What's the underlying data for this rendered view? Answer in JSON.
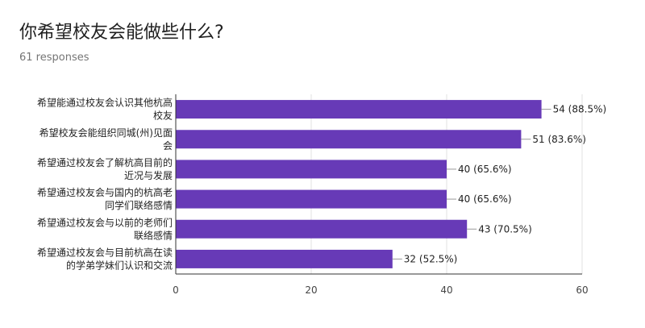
{
  "question": {
    "title": "你希望校友会能做些什么?",
    "responses": "61 responses"
  },
  "colors": {
    "bar": "#673ab7",
    "grid": "#e0e0e0",
    "axis": "#333333",
    "label_line": "#999999"
  },
  "chart_data": {
    "type": "bar",
    "orientation": "horizontal",
    "categories": [
      [
        "希望能通过校友会认识其他杭高",
        "校友"
      ],
      [
        "希望校友会能组织同城(州)见面",
        "会"
      ],
      [
        "希望通过校友会了解杭高目前的",
        "近况与发展"
      ],
      [
        "希望通过校友会与国内的杭高老",
        "同学们联络感情"
      ],
      [
        "希望通过校友会与以前的老师们",
        "联络感情"
      ],
      [
        "希望通过校友会与目前杭高在读",
        "的学弟学妹们认识和交流"
      ]
    ],
    "values": [
      54,
      51,
      40,
      40,
      43,
      32
    ],
    "data_labels": [
      "54 (88.5%)",
      "51 (83.6%)",
      "40 (65.6%)",
      "40 (65.6%)",
      "43 (70.5%)",
      "32 (52.5%)"
    ],
    "xlim": [
      0,
      60
    ],
    "xticks": [
      0,
      20,
      40,
      60
    ],
    "xtick_labels": [
      "0",
      "20",
      "40",
      "60"
    ],
    "grid": true
  }
}
